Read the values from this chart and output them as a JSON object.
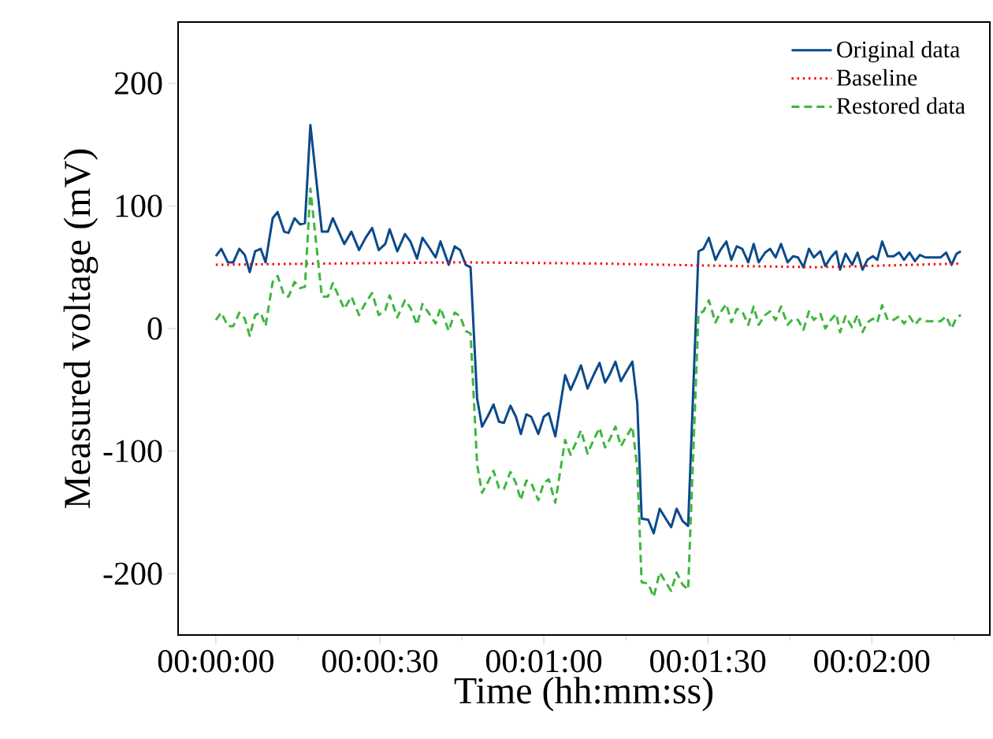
{
  "chart_data": {
    "type": "line",
    "xlabel": "Time (hh:mm:ss)",
    "ylabel": "Measured voltage (mV)",
    "x": [
      0,
      1,
      2.2,
      3.2,
      4.3,
      5.3,
      6.2,
      7.2,
      8.2,
      9.1,
      10.4,
      11.3,
      12.5,
      13.3,
      14.4,
      15.4,
      16.3,
      17.3,
      19.4,
      20.5,
      21.4,
      22.6,
      23.5,
      24.8,
      26.2,
      27.4,
      28.6,
      29.8,
      31,
      31.8,
      33.2,
      34.6,
      35.6,
      36.8,
      37.8,
      38.9,
      40.2,
      41.1,
      42.6,
      43.7,
      44.7,
      45.7,
      46.6,
      47.8,
      48.7,
      49.7,
      50.8,
      51.8,
      52.7,
      53.9,
      54.9,
      55.8,
      56.8,
      57.7,
      59,
      60,
      60.9,
      62.1,
      63.9,
      64.9,
      65.9,
      66.8,
      68,
      69.1,
      70.2,
      71.2,
      72,
      73.1,
      74.1,
      75,
      76.2,
      77.1,
      77.9,
      79.1,
      80.1,
      81.2,
      82.3,
      83.3,
      84.3,
      85.4,
      86.4,
      88.3,
      89.2,
      90.2,
      91.4,
      92.3,
      93.4,
      94.3,
      95.3,
      96.3,
      97.4,
      98.4,
      99.3,
      100.5,
      101.4,
      102.4,
      103.4,
      104.6,
      105.6,
      106.5,
      107.5,
      108.5,
      109.4,
      110.6,
      111.5,
      112.5,
      113.5,
      114.2,
      115.2,
      116.4,
      117.4,
      118.3,
      119.2,
      120.2,
      121,
      121.9,
      122.9,
      124,
      125,
      125.9,
      126.9,
      127.9,
      128.8,
      129.8,
      130.7,
      131.7,
      132.6,
      133.6,
      134.6,
      135.5,
      136.3
    ],
    "series": [
      {
        "name": "Original data",
        "color": "#0b4a8b",
        "line_style": "solid",
        "values": [
          59,
          65,
          54,
          54,
          65,
          60,
          46,
          63,
          65,
          54,
          90,
          95,
          79,
          78,
          90,
          85,
          86,
          166,
          79,
          79,
          90,
          78,
          69,
          79,
          64,
          74,
          82,
          64,
          69,
          81,
          63,
          77,
          71,
          57,
          74,
          67,
          58,
          71,
          52,
          67,
          64,
          52,
          50,
          -57,
          -80,
          -72,
          -62,
          -76,
          -77,
          -63,
          -72,
          -86,
          -70,
          -72,
          -86,
          -72,
          -69,
          -88,
          -38,
          -50,
          -40,
          -30,
          -49,
          -38,
          -28,
          -44,
          -38,
          -27,
          -43,
          -36,
          -27,
          -61,
          -155,
          -156,
          -167,
          -147,
          -155,
          -162,
          -147,
          -157,
          -161,
          63,
          65,
          74,
          56,
          64,
          71,
          56,
          67,
          65,
          54,
          69,
          54,
          62,
          65,
          58,
          69,
          54,
          59,
          58,
          50,
          65,
          58,
          63,
          51,
          58,
          63,
          48,
          61,
          52,
          62,
          48,
          56,
          59,
          56,
          71,
          59,
          59,
          62,
          56,
          62,
          55,
          60,
          58,
          58,
          58,
          58,
          62,
          52,
          61,
          63
        ]
      },
      {
        "name": "Baseline",
        "color": "#ff0000",
        "line_style": "dotted",
        "x": [
          0,
          20,
          45,
          70,
          95,
          110,
          136.3
        ],
        "values": [
          52,
          53,
          54,
          53,
          51,
          50,
          53
        ]
      },
      {
        "name": "Restored data",
        "color": "#3fb63f",
        "line_style": "dashed",
        "values": [
          7,
          13,
          2,
          2,
          13,
          8,
          -6,
          11,
          13,
          2,
          38,
          43,
          27,
          26,
          38,
          33,
          34,
          114,
          26,
          26,
          37,
          25,
          16,
          26,
          11,
          21,
          29,
          11,
          15,
          27,
          9,
          23,
          17,
          3,
          20,
          13,
          4,
          17,
          -2,
          13,
          10,
          -2,
          -4,
          -111,
          -134,
          -126,
          -116,
          -130,
          -131,
          -117,
          -126,
          -140,
          -124,
          -126,
          -140,
          -126,
          -123,
          -142,
          -91,
          -103,
          -93,
          -83,
          -102,
          -91,
          -81,
          -97,
          -91,
          -80,
          -96,
          -89,
          -80,
          -114,
          -207,
          -208,
          -219,
          -199,
          -207,
          -214,
          -199,
          -209,
          -213,
          12,
          14,
          23,
          5,
          13,
          20,
          5,
          16,
          14,
          3,
          18,
          3,
          11,
          14,
          7,
          18,
          3,
          8,
          7,
          -1,
          14,
          7,
          12,
          0,
          7,
          12,
          -3,
          10,
          1,
          11,
          -3,
          5,
          8,
          5,
          19,
          7,
          7,
          10,
          4,
          10,
          3,
          8,
          6,
          6,
          6,
          6,
          10,
          0,
          9,
          11
        ]
      }
    ],
    "xlim": [
      -6.9,
      141.6
    ],
    "ylim": [
      -250,
      250
    ],
    "xticks": [
      {
        "value": 0,
        "label": "00:00:00"
      },
      {
        "value": 15,
        "label": null
      },
      {
        "value": 30,
        "label": "00:00:30"
      },
      {
        "value": 45,
        "label": null
      },
      {
        "value": 60,
        "label": "00:01:00"
      },
      {
        "value": 75,
        "label": null
      },
      {
        "value": 90,
        "label": "00:01:30"
      },
      {
        "value": 105,
        "label": null
      },
      {
        "value": 120,
        "label": "00:02:00"
      },
      {
        "value": 135,
        "label": null
      }
    ],
    "yticks": [
      -200,
      -100,
      0,
      100,
      200
    ],
    "legend": "top right",
    "marker": "none"
  }
}
